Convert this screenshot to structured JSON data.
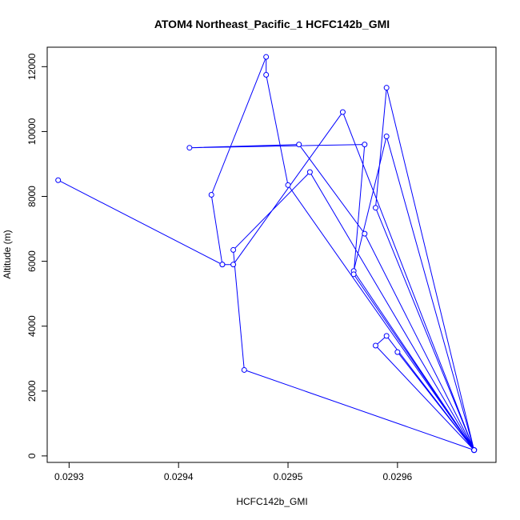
{
  "chart_data": {
    "type": "line",
    "title": "ATOM4 Northeast_Pacific_1 HCFC142b_GMI",
    "xlabel": "HCFC142b_GMI",
    "ylabel": "Altitude (m)",
    "xlim": [
      0.02928,
      0.02969
    ],
    "ylim": [
      -200,
      12600
    ],
    "xticks": [
      0.0293,
      0.0294,
      0.0295,
      0.0296
    ],
    "xtick_labels": [
      "0.0293",
      "0.0294",
      "0.0295",
      "0.0296"
    ],
    "yticks": [
      0,
      2000,
      4000,
      6000,
      8000,
      10000,
      12000
    ],
    "ytick_labels": [
      "0",
      "2000",
      "4000",
      "6000",
      "8000",
      "10000",
      "12000"
    ],
    "grid": false,
    "colors": {
      "series": "#0000ff",
      "marker_fill": "#ffffff",
      "axes": "#000000"
    },
    "series": [
      {
        "marker": "open-circle",
        "x": [
          0.02967,
          0.02946,
          0.02945,
          0.02952,
          0.02967,
          0.02958,
          0.02959,
          0.02967,
          0.0296,
          0.02967,
          0.02958,
          0.02959,
          0.02967,
          0.02956,
          0.02959,
          0.02967,
          0.02955,
          0.02945,
          0.02944,
          0.02929,
          0.02944,
          0.02943,
          0.02948,
          0.02948,
          0.0295,
          0.02967,
          0.02957,
          0.02951,
          0.02941,
          0.02957,
          0.02956,
          0.02967
        ],
        "y": [
          180,
          2650,
          6350,
          8750,
          180,
          3400,
          3700,
          180,
          3200,
          180,
          7650,
          11350,
          180,
          5700,
          9850,
          180,
          10600,
          5900,
          5900,
          8500,
          5900,
          8050,
          12300,
          11750,
          8350,
          180,
          6850,
          9600,
          9500,
          9600,
          5600,
          180
        ]
      }
    ]
  }
}
